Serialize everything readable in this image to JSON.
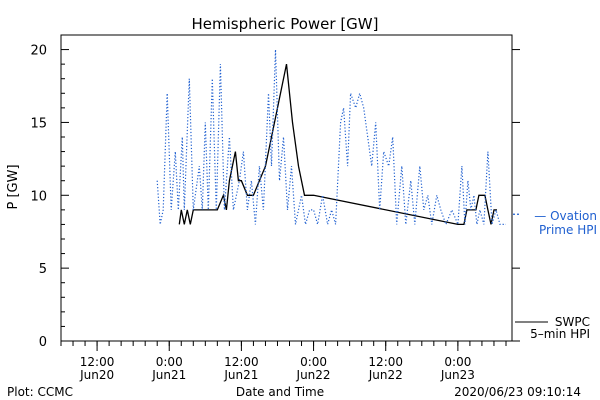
{
  "chart_data": {
    "type": "line",
    "title": "Hemispheric Power [GW]",
    "ylabel": "P [GW]",
    "xlabel": "Date and Time",
    "ylim": [
      0,
      21
    ],
    "xlim": [
      "2020-06-20 06:00",
      "2020-06-23 09:00"
    ],
    "grid": false,
    "yticks": [
      0,
      5,
      10,
      15,
      20
    ],
    "xticks": [
      {
        "top": "12:00",
        "bottom": "Jun20",
        "t": "2020-06-20 12:00"
      },
      {
        "top": "0:00",
        "bottom": "Jun21",
        "t": "2020-06-21 00:00"
      },
      {
        "top": "12:00",
        "bottom": "Jun21",
        "t": "2020-06-21 12:00"
      },
      {
        "top": "0:00",
        "bottom": "Jun22",
        "t": "2020-06-22 00:00"
      },
      {
        "top": "12:00",
        "bottom": "Jun22",
        "t": "2020-06-22 12:00"
      },
      {
        "top": "0:00",
        "bottom": "Jun23",
        "t": "2020-06-23 00:00"
      }
    ],
    "series": [
      {
        "name": "SWPC 5-min HPI",
        "color": "#000000",
        "style": "solid",
        "points": [
          [
            "2020-06-21 01:40",
            8
          ],
          [
            "2020-06-21 02:00",
            9
          ],
          [
            "2020-06-21 02:30",
            8
          ],
          [
            "2020-06-21 03:00",
            9
          ],
          [
            "2020-06-21 03:30",
            8
          ],
          [
            "2020-06-21 04:00",
            9
          ],
          [
            "2020-06-21 07:00",
            9
          ],
          [
            "2020-06-21 08:00",
            9
          ],
          [
            "2020-06-21 09:00",
            10
          ],
          [
            "2020-06-21 09:30",
            9
          ],
          [
            "2020-06-21 10:00",
            11
          ],
          [
            "2020-06-21 10:30",
            12
          ],
          [
            "2020-06-21 11:00",
            13
          ],
          [
            "2020-06-21 11:30",
            11
          ],
          [
            "2020-06-21 12:00",
            11
          ],
          [
            "2020-06-21 13:00",
            10
          ],
          [
            "2020-06-21 14:00",
            10
          ],
          [
            "2020-06-21 15:00",
            11
          ],
          [
            "2020-06-21 16:00",
            12
          ],
          [
            "2020-06-21 17:00",
            14
          ],
          [
            "2020-06-21 18:00",
            16
          ],
          [
            "2020-06-21 19:00",
            18
          ],
          [
            "2020-06-21 19:30",
            19
          ],
          [
            "2020-06-21 20:30",
            15
          ],
          [
            "2020-06-21 21:30",
            12
          ],
          [
            "2020-06-21 22:30",
            10
          ],
          [
            "2020-06-22 00:00",
            10
          ],
          [
            "2020-06-23 00:00",
            8
          ],
          [
            "2020-06-23 01:00",
            8
          ],
          [
            "2020-06-23 01:30",
            9
          ],
          [
            "2020-06-23 03:00",
            9
          ],
          [
            "2020-06-23 03:30",
            10
          ],
          [
            "2020-06-23 04:30",
            10
          ],
          [
            "2020-06-23 05:00",
            9
          ],
          [
            "2020-06-23 05:30",
            8
          ],
          [
            "2020-06-23 06:00",
            9
          ],
          [
            "2020-06-23 06:30",
            9
          ]
        ]
      },
      {
        "name": "Ovation Prime HPI",
        "color": "#2060d0",
        "style": "dotted",
        "points": [
          [
            "2020-06-20 22:00",
            11
          ],
          [
            "2020-06-20 22:30",
            8
          ],
          [
            "2020-06-20 23:00",
            9
          ],
          [
            "2020-06-20 23:40",
            17
          ],
          [
            "2020-06-21 00:20",
            9
          ],
          [
            "2020-06-21 01:00",
            13
          ],
          [
            "2020-06-21 01:30",
            9
          ],
          [
            "2020-06-21 02:10",
            14
          ],
          [
            "2020-06-21 02:30",
            9
          ],
          [
            "2020-06-21 03:20",
            18
          ],
          [
            "2020-06-21 04:00",
            9
          ],
          [
            "2020-06-21 05:00",
            12
          ],
          [
            "2020-06-21 05:30",
            9
          ],
          [
            "2020-06-21 06:00",
            15
          ],
          [
            "2020-06-21 06:30",
            9
          ],
          [
            "2020-06-21 07:10",
            18
          ],
          [
            "2020-06-21 07:50",
            9
          ],
          [
            "2020-06-21 08:30",
            19
          ],
          [
            "2020-06-21 09:10",
            9
          ],
          [
            "2020-06-21 10:00",
            14
          ],
          [
            "2020-06-21 10:40",
            9
          ],
          [
            "2020-06-21 11:40",
            11
          ],
          [
            "2020-06-21 12:20",
            13
          ],
          [
            "2020-06-21 13:00",
            9
          ],
          [
            "2020-06-21 13:40",
            11
          ],
          [
            "2020-06-21 14:20",
            8
          ],
          [
            "2020-06-21 15:00",
            12
          ],
          [
            "2020-06-21 15:40",
            9
          ],
          [
            "2020-06-21 16:30",
            17
          ],
          [
            "2020-06-21 17:00",
            12
          ],
          [
            "2020-06-21 17:40",
            20
          ],
          [
            "2020-06-21 18:20",
            11
          ],
          [
            "2020-06-21 19:00",
            14
          ],
          [
            "2020-06-21 19:40",
            9
          ],
          [
            "2020-06-21 20:20",
            12
          ],
          [
            "2020-06-21 21:00",
            8
          ],
          [
            "2020-06-21 22:00",
            10
          ],
          [
            "2020-06-21 22:40",
            8
          ],
          [
            "2020-06-21 23:20",
            9
          ],
          [
            "2020-06-22 00:00",
            9
          ],
          [
            "2020-06-22 00:40",
            8
          ],
          [
            "2020-06-22 01:30",
            10
          ],
          [
            "2020-06-22 02:20",
            8
          ],
          [
            "2020-06-22 03:00",
            9
          ],
          [
            "2020-06-22 03:40",
            8
          ],
          [
            "2020-06-22 04:30",
            15
          ],
          [
            "2020-06-22 05:00",
            16
          ],
          [
            "2020-06-22 05:40",
            12
          ],
          [
            "2020-06-22 06:10",
            17
          ],
          [
            "2020-06-22 07:00",
            16
          ],
          [
            "2020-06-22 07:40",
            17
          ],
          [
            "2020-06-22 08:20",
            16
          ],
          [
            "2020-06-22 09:00",
            14
          ],
          [
            "2020-06-22 09:40",
            12
          ],
          [
            "2020-06-22 10:20",
            15
          ],
          [
            "2020-06-22 11:00",
            9
          ],
          [
            "2020-06-22 11:40",
            13
          ],
          [
            "2020-06-22 12:30",
            12
          ],
          [
            "2020-06-22 13:10",
            14
          ],
          [
            "2020-06-22 13:50",
            8
          ],
          [
            "2020-06-22 14:40",
            12
          ],
          [
            "2020-06-22 15:20",
            8
          ],
          [
            "2020-06-22 16:10",
            11
          ],
          [
            "2020-06-22 16:50",
            8
          ],
          [
            "2020-06-22 17:40",
            12
          ],
          [
            "2020-06-22 18:20",
            9
          ],
          [
            "2020-06-22 19:00",
            10
          ],
          [
            "2020-06-22 19:40",
            8
          ],
          [
            "2020-06-22 20:30",
            10
          ],
          [
            "2020-06-22 21:10",
            9
          ],
          [
            "2020-06-22 22:00",
            8
          ],
          [
            "2020-06-22 23:00",
            9
          ],
          [
            "2020-06-23 00:00",
            8
          ],
          [
            "2020-06-23 00:40",
            12
          ],
          [
            "2020-06-23 01:10",
            8
          ],
          [
            "2020-06-23 01:40",
            11
          ],
          [
            "2020-06-23 02:10",
            9
          ],
          [
            "2020-06-23 02:40",
            10
          ],
          [
            "2020-06-23 03:10",
            8
          ],
          [
            "2020-06-23 03:40",
            9
          ],
          [
            "2020-06-23 04:20",
            8
          ],
          [
            "2020-06-23 05:00",
            13
          ],
          [
            "2020-06-23 05:40",
            8
          ],
          [
            "2020-06-23 06:20",
            9
          ],
          [
            "2020-06-23 07:00",
            8
          ],
          [
            "2020-06-23 08:00",
            8
          ]
        ]
      }
    ]
  },
  "legend": {
    "ovation_line1": "— Ovation",
    "ovation_line2": "Prime HPI",
    "swpc_line1": "SWPC",
    "swpc_line2": "5–min HPI"
  },
  "footer": {
    "left": "Plot: CCMC",
    "center": "Date and Time",
    "right": "2020/06/23 09:10:14"
  }
}
